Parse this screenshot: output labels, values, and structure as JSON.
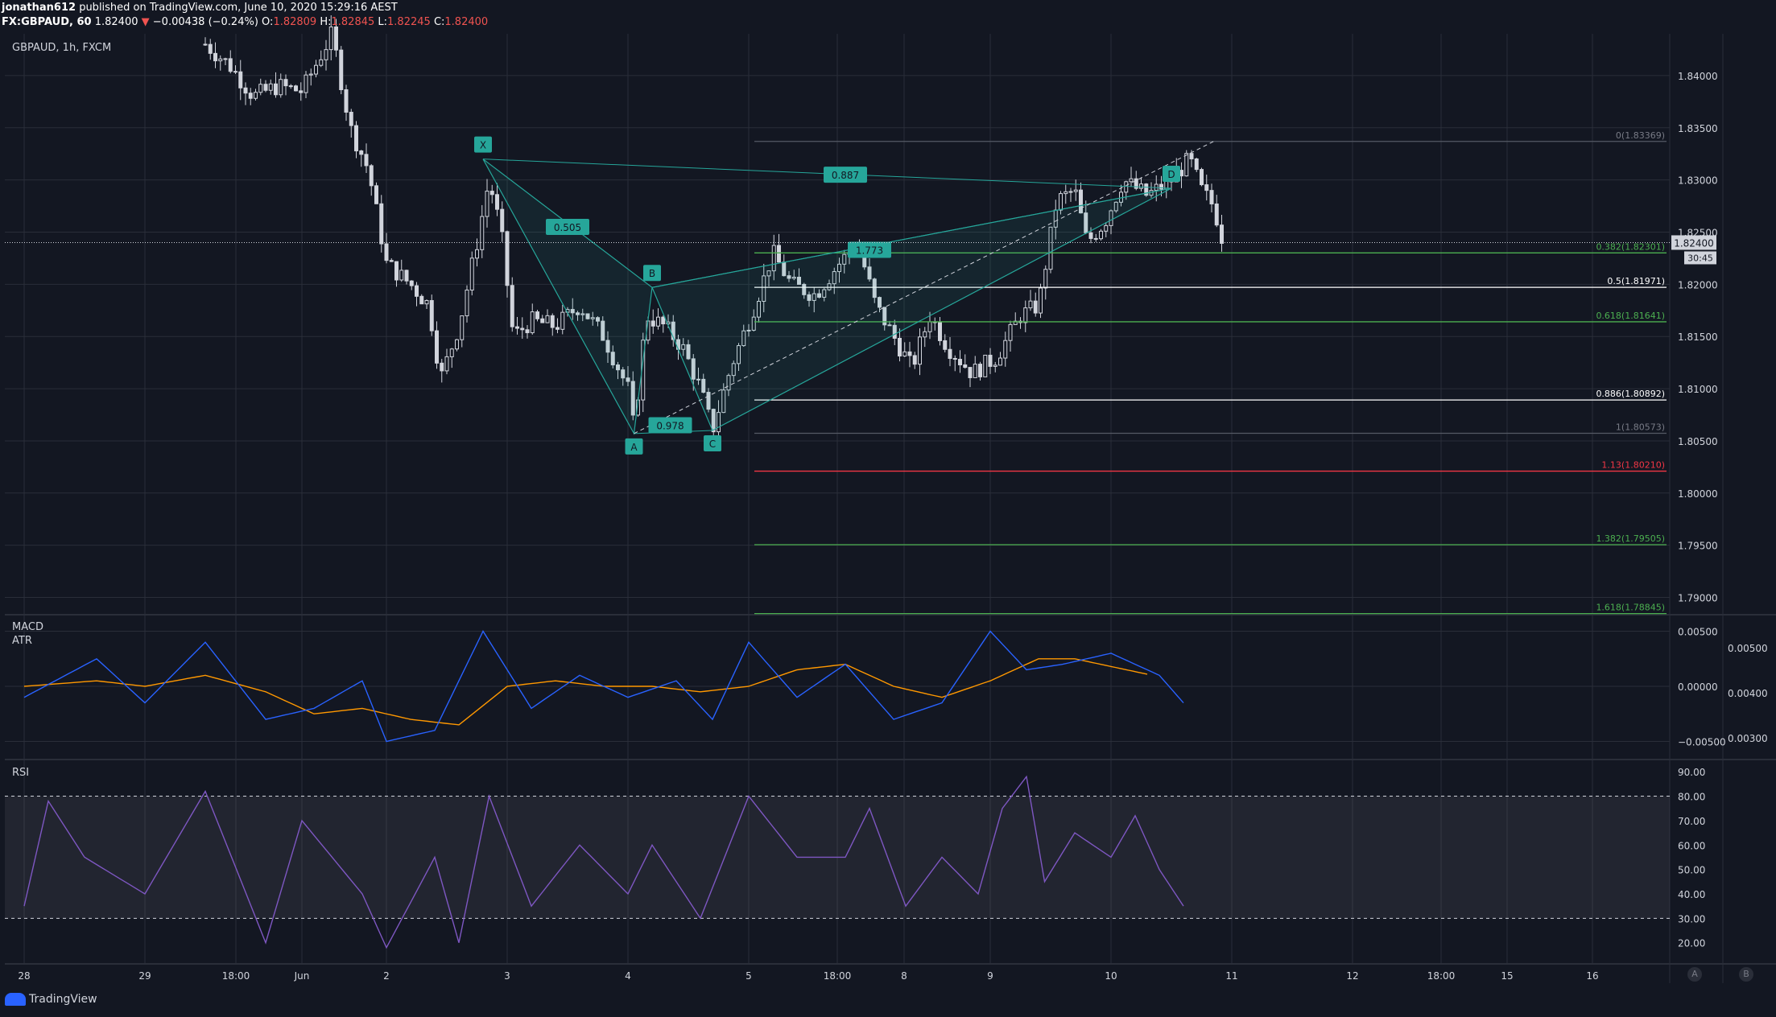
{
  "header": {
    "user": "jonathan612",
    "published_text": " published on TradingView.com, June 10, 2020 15:29:16 AEST",
    "symbol": "FX:GBPAUD, 60",
    "last": "1.82400",
    "change_arrow": "▼",
    "change": "−0.00438 (−0.24%)",
    "o_label": "O:",
    "o_val": "1.82809",
    "h_label": "H:",
    "h_val": "1.82845",
    "l_label": "L:",
    "l_val": "1.82245",
    "c_label": "C:",
    "c_val": "1.82400"
  },
  "main_pane": {
    "title": "GBPAUD, 1h, FXCM"
  },
  "macd_pane": {
    "title1": "MACD",
    "title2": "ATR"
  },
  "rsi_pane": {
    "title": "RSI"
  },
  "footer": {
    "brand": "TradingView",
    "btn_a": "A",
    "btn_b": "B"
  },
  "colors": {
    "background": "#131722",
    "grid": "#2a2e39",
    "candle": "#d1d4dc",
    "pattern": "#26a69a",
    "macd": "#2962ff",
    "signal": "#ff9800",
    "rsi": "#7e57c2",
    "fib_green": "#4caf50",
    "fib_red": "#f23645",
    "fib_white": "#ffffff"
  },
  "chart_data": {
    "type": "candlestick",
    "symbol": "GBPAUD",
    "timeframe": "1h",
    "price_axis": {
      "ticks": [
        "1.84000",
        "1.83500",
        "1.83000",
        "1.82500",
        "1.82000",
        "1.81500",
        "1.81000",
        "1.80500",
        "1.80000",
        "1.79500",
        "1.79000"
      ],
      "range": [
        1.7885,
        1.844
      ],
      "last_price_label": "1.82400",
      "countdown": "30:45"
    },
    "time_axis": [
      "28",
      "29",
      "18:00",
      "Jun",
      "2",
      "3",
      "4",
      "5",
      "18:00",
      "8",
      "9",
      "10",
      "11",
      "12",
      "18:00",
      "15",
      "16"
    ],
    "harmonic_pattern": {
      "points": [
        {
          "label": "X",
          "index": 3.8,
          "price": 1.832
        },
        {
          "label": "A",
          "index": 5.05,
          "price": 1.8057
        },
        {
          "label": "B",
          "index": 5.2,
          "price": 1.8197
        },
        {
          "label": "C",
          "index": 5.7,
          "price": 1.806
        },
        {
          "label": "D",
          "index": 9.5,
          "price": 1.8292
        }
      ],
      "ratios": [
        {
          "label": "0.887",
          "index": 6.8,
          "price": 1.8305
        },
        {
          "label": "0.505",
          "index": 4.5,
          "price": 1.8255
        },
        {
          "label": "1.773",
          "index": 7.0,
          "price": 1.8233
        },
        {
          "label": "0.978",
          "index": 5.35,
          "price": 1.8065
        }
      ]
    },
    "fib_levels": [
      {
        "label": "0(1.83369)",
        "price": 1.83369,
        "color": "#555a66"
      },
      {
        "label": "0.382(1.82301)",
        "price": 1.82301,
        "color": "#4caf50"
      },
      {
        "label": "0.5(1.81971)",
        "price": 1.81971,
        "color": "#ffffff"
      },
      {
        "label": "0.618(1.81641)",
        "price": 1.81641,
        "color": "#4caf50"
      },
      {
        "label": "0.886(1.80892)",
        "price": 1.80892,
        "color": "#ffffff"
      },
      {
        "label": "1(1.80573)",
        "price": 1.80573,
        "color": "#555a66"
      },
      {
        "label": "1.13(1.80210)",
        "price": 1.8021,
        "color": "#f23645"
      },
      {
        "label": "1.382(1.79505)",
        "price": 1.79505,
        "color": "#4caf50"
      },
      {
        "label": "1.618(1.78845)",
        "price": 1.78845,
        "color": "#4caf50"
      }
    ],
    "price_path": [
      [
        1.5,
        1.843
      ],
      [
        1.7,
        1.841
      ],
      [
        1.9,
        1.838
      ],
      [
        2.1,
        1.839
      ],
      [
        2.3,
        1.8385
      ],
      [
        2.55,
        1.844
      ],
      [
        2.7,
        1.835
      ],
      [
        2.85,
        1.831
      ],
      [
        3.0,
        1.822
      ],
      [
        3.2,
        1.82
      ],
      [
        3.35,
        1.818
      ],
      [
        3.45,
        1.811
      ],
      [
        3.6,
        1.816
      ],
      [
        3.75,
        1.824
      ],
      [
        3.85,
        1.83
      ],
      [
        3.95,
        1.825
      ],
      [
        4.05,
        1.815
      ],
      [
        4.2,
        1.8165
      ],
      [
        4.4,
        1.816
      ],
      [
        4.6,
        1.818
      ],
      [
        4.8,
        1.815
      ],
      [
        5.0,
        1.81
      ],
      [
        5.05,
        1.806
      ],
      [
        5.15,
        1.817
      ],
      [
        5.3,
        1.816
      ],
      [
        5.45,
        1.814
      ],
      [
        5.6,
        1.81
      ],
      [
        5.7,
        1.806
      ],
      [
        5.85,
        1.812
      ],
      [
        6.05,
        1.818
      ],
      [
        6.2,
        1.823
      ],
      [
        6.35,
        1.82
      ],
      [
        6.55,
        1.819
      ],
      [
        6.75,
        1.822
      ],
      [
        6.9,
        1.824
      ],
      [
        7.05,
        1.818
      ],
      [
        7.2,
        1.815
      ],
      [
        7.35,
        1.812
      ],
      [
        7.5,
        1.817
      ],
      [
        7.65,
        1.814
      ],
      [
        7.85,
        1.8115
      ],
      [
        8.05,
        1.813
      ],
      [
        8.25,
        1.817
      ],
      [
        8.4,
        1.818
      ],
      [
        8.55,
        1.828
      ],
      [
        8.7,
        1.829
      ],
      [
        8.8,
        1.824
      ],
      [
        8.95,
        1.826
      ],
      [
        9.1,
        1.83
      ],
      [
        9.3,
        1.8285
      ],
      [
        9.5,
        1.83
      ],
      [
        9.65,
        1.832
      ],
      [
        9.75,
        1.829
      ],
      [
        9.85,
        1.8275
      ],
      [
        9.93,
        1.824
      ]
    ],
    "macd": {
      "axis_ticks": [
        "0.00500",
        "0.00000",
        "−0.00500"
      ],
      "atr_ticks": [
        "0.00500",
        "0.00400",
        "0.00300"
      ],
      "macd_line": [
        [
          0,
          -0.001
        ],
        [
          0.6,
          0.0025
        ],
        [
          1.0,
          -0.0015
        ],
        [
          1.5,
          0.004
        ],
        [
          2.0,
          -0.003
        ],
        [
          2.4,
          -0.002
        ],
        [
          2.8,
          0.0005
        ],
        [
          3.0,
          -0.005
        ],
        [
          3.4,
          -0.004
        ],
        [
          3.8,
          0.005
        ],
        [
          4.2,
          -0.002
        ],
        [
          4.6,
          0.001
        ],
        [
          5.0,
          -0.001
        ],
        [
          5.4,
          0.0005
        ],
        [
          5.7,
          -0.003
        ],
        [
          6.0,
          0.004
        ],
        [
          6.4,
          -0.001
        ],
        [
          6.8,
          0.002
        ],
        [
          7.2,
          -0.003
        ],
        [
          7.6,
          -0.0015
        ],
        [
          8.0,
          0.005
        ],
        [
          8.3,
          0.0015
        ],
        [
          8.6,
          0.002
        ],
        [
          9.0,
          0.003
        ],
        [
          9.4,
          0.001
        ],
        [
          9.6,
          -0.0015
        ]
      ],
      "signal_line": [
        [
          0,
          0.0
        ],
        [
          0.6,
          0.0005
        ],
        [
          1.0,
          0.0
        ],
        [
          1.5,
          0.001
        ],
        [
          2.0,
          -0.0005
        ],
        [
          2.4,
          -0.0025
        ],
        [
          2.8,
          -0.002
        ],
        [
          3.2,
          -0.003
        ],
        [
          3.6,
          -0.0035
        ],
        [
          4.0,
          0.0
        ],
        [
          4.4,
          0.0005
        ],
        [
          4.8,
          0.0
        ],
        [
          5.2,
          0.0
        ],
        [
          5.6,
          -0.0005
        ],
        [
          6.0,
          0.0
        ],
        [
          6.4,
          0.0015
        ],
        [
          6.8,
          0.002
        ],
        [
          7.2,
          0.0
        ],
        [
          7.6,
          -0.001
        ],
        [
          8.0,
          0.0005
        ],
        [
          8.4,
          0.0025
        ],
        [
          8.7,
          0.0025
        ],
        [
          9.0,
          0.0018
        ],
        [
          9.3,
          0.0011
        ]
      ]
    },
    "rsi": {
      "axis_ticks": [
        "90.00",
        "80.00",
        "70.00",
        "60.00",
        "50.00",
        "40.00",
        "30.00",
        "20.00"
      ],
      "upper_band": 80,
      "lower_band": 30,
      "values": [
        [
          0,
          35
        ],
        [
          0.2,
          78
        ],
        [
          0.5,
          55
        ],
        [
          1.0,
          40
        ],
        [
          1.5,
          82
        ],
        [
          2.0,
          20
        ],
        [
          2.3,
          70
        ],
        [
          2.8,
          40
        ],
        [
          3.0,
          18
        ],
        [
          3.4,
          55
        ],
        [
          3.6,
          20
        ],
        [
          3.85,
          80
        ],
        [
          4.2,
          35
        ],
        [
          4.6,
          60
        ],
        [
          5.0,
          40
        ],
        [
          5.2,
          60
        ],
        [
          5.6,
          30
        ],
        [
          6.0,
          80
        ],
        [
          6.4,
          55
        ],
        [
          6.8,
          55
        ],
        [
          7.0,
          75
        ],
        [
          7.3,
          35
        ],
        [
          7.6,
          55
        ],
        [
          7.9,
          40
        ],
        [
          8.1,
          75
        ],
        [
          8.3,
          88
        ],
        [
          8.45,
          45
        ],
        [
          8.7,
          65
        ],
        [
          9.0,
          55
        ],
        [
          9.2,
          72
        ],
        [
          9.4,
          50
        ],
        [
          9.6,
          35
        ]
      ]
    }
  }
}
